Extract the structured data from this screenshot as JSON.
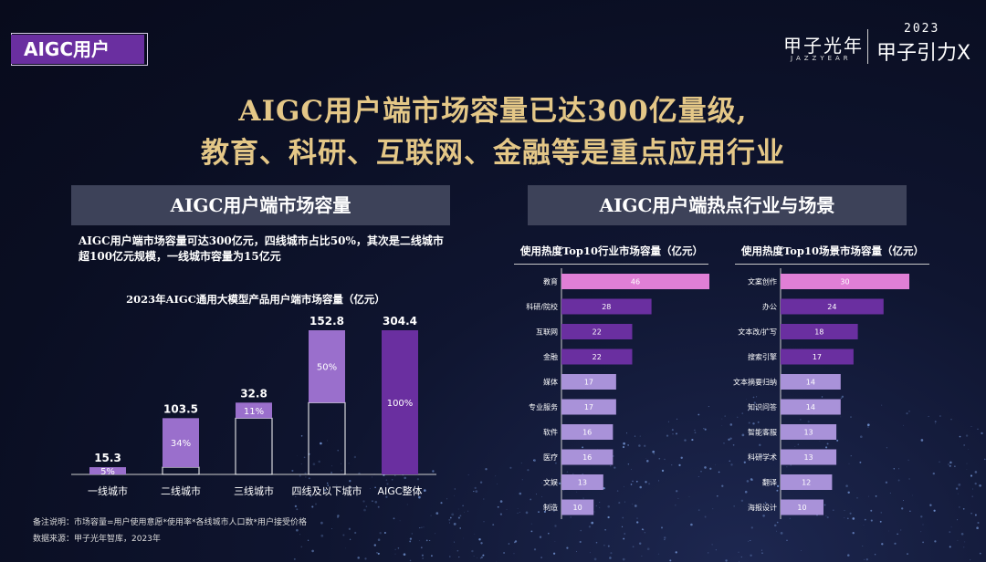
{
  "tag": "AIGC用户",
  "logo": {
    "name": "甲子光年",
    "sub": "JAZZYEAR",
    "year": "2023",
    "event": "甲子引力X"
  },
  "headline": {
    "line1": "AIGC用户端市场容量已达300亿量级,",
    "line2": "教育、科研、互联网、金融等是重点应用行业"
  },
  "left": {
    "header": "AIGC用户端市场容量",
    "desc_line1": "AIGC用户端市场容量可达300亿元，四线城市占比50%，其次是二线城市",
    "desc_line2": "超100亿元规模，一线城市容量为15亿元",
    "footnote1": "备注说明：市场容量=用户使用意愿*使用率*各线城市人口数*用户接受价格",
    "footnote2": "数据来源：甲子光年智库，2023年"
  },
  "right": {
    "header": "AIGC用户端热点行业与场景"
  },
  "chart_data": [
    {
      "type": "bar",
      "title": "2023年AIGC通用大模型产品用户端市场容量（亿元）",
      "categories": [
        "一线城市",
        "二线城市",
        "三线城市",
        "四线及以下城市",
        "AIGC整体"
      ],
      "values": [
        15.3,
        103.5,
        32.8,
        152.8,
        304.4
      ],
      "value_labels": [
        "15.3",
        "103.5",
        "32.8",
        "152.8",
        "304.4"
      ],
      "share_labels": [
        "5%",
        "34%",
        "11%",
        "50%",
        "100%"
      ],
      "ylim": [
        0,
        304.4
      ],
      "colors": {
        "segment": "#9a6fcc",
        "total": "#6a2fa0",
        "outline": "#ffffff"
      }
    },
    {
      "type": "bar",
      "orientation": "horizontal",
      "title": "使用热度Top10行业市场容量（亿元）",
      "categories": [
        "教育",
        "科研/院校",
        "互联网",
        "金融",
        "媒体",
        "专业服务",
        "软件",
        "医疗",
        "文娱",
        "制造"
      ],
      "values": [
        46,
        28,
        22,
        22,
        17,
        17,
        16,
        16,
        13,
        10
      ],
      "colors": [
        "#e07fd6",
        "#6a2fa0",
        "#6a2fa0",
        "#6a2fa0",
        "#a992d9",
        "#a992d9",
        "#a992d9",
        "#a992d9",
        "#a992d9",
        "#a992d9"
      ]
    },
    {
      "type": "bar",
      "orientation": "horizontal",
      "title": "使用热度Top10场景市场容量（亿元）",
      "categories": [
        "文案创作",
        "办公",
        "文本改/扩写",
        "搜索引擎",
        "文本摘要归纳",
        "知识问答",
        "智能客服",
        "科研学术",
        "翻译",
        "海报设计"
      ],
      "values": [
        30,
        24,
        18,
        17,
        14,
        14,
        13,
        13,
        12,
        10
      ],
      "colors": [
        "#e07fd6",
        "#6a2fa0",
        "#6a2fa0",
        "#6a2fa0",
        "#a992d9",
        "#a992d9",
        "#a992d9",
        "#a992d9",
        "#a992d9",
        "#a992d9"
      ]
    }
  ]
}
